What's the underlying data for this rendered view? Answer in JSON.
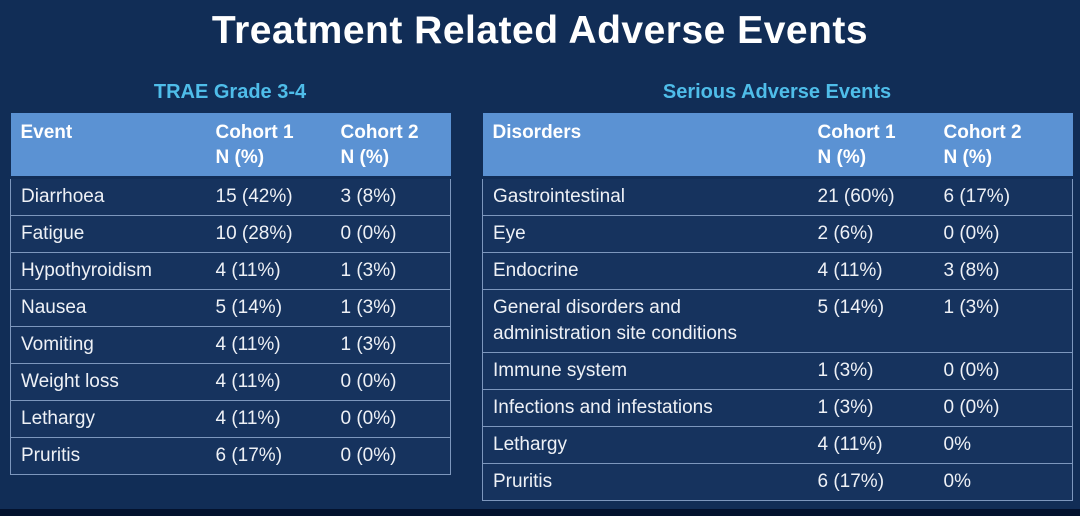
{
  "slide": {
    "title": "Treatment Related Adverse Events"
  },
  "colors": {
    "background": "#112d56",
    "table_header_blue": "#5b92d3",
    "subtitle_blue": "#4fbde9",
    "row_background": "#16335e",
    "row_border": "#7d97bd",
    "title_text": "#ffffff"
  },
  "tables": [
    {
      "subtitle": "TRAE Grade 3-4",
      "columns": [
        {
          "title": "Event",
          "sub": ""
        },
        {
          "title": "Cohort 1",
          "sub": "N (%)"
        },
        {
          "title": "Cohort 2",
          "sub": "N (%)"
        }
      ],
      "rows": [
        {
          "label": "Diarrhoea",
          "c1": "15 (42%)",
          "c2": "3 (8%)"
        },
        {
          "label": "Fatigue",
          "c1": "10 (28%)",
          "c2": "0 (0%)"
        },
        {
          "label": "Hypothyroidism",
          "c1": "4 (11%)",
          "c2": "1 (3%)"
        },
        {
          "label": "Nausea",
          "c1": "5 (14%)",
          "c2": "1 (3%)"
        },
        {
          "label": "Vomiting",
          "c1": "4 (11%)",
          "c2": "1 (3%)"
        },
        {
          "label": "Weight loss",
          "c1": "4 (11%)",
          "c2": "0 (0%)"
        },
        {
          "label": "Lethargy",
          "c1": "4 (11%)",
          "c2": "0 (0%)"
        },
        {
          "label": "Pruritis",
          "c1": "6 (17%)",
          "c2": "0 (0%)"
        }
      ]
    },
    {
      "subtitle": "Serious Adverse Events",
      "columns": [
        {
          "title": "Disorders",
          "sub": ""
        },
        {
          "title": "Cohort 1",
          "sub": "N (%)"
        },
        {
          "title": "Cohort 2",
          "sub": "N (%)"
        }
      ],
      "rows": [
        {
          "label": "Gastrointestinal",
          "c1": "21 (60%)",
          "c2": "6 (17%)"
        },
        {
          "label": "Eye",
          "c1": "2 (6%)",
          "c2": "0 (0%)"
        },
        {
          "label": "Endocrine",
          "c1": "4 (11%)",
          "c2": "3 (8%)"
        },
        {
          "label": "General disorders and administration site conditions",
          "c1": "5 (14%)",
          "c2": "1 (3%)"
        },
        {
          "label": "Immune system",
          "c1": "1 (3%)",
          "c2": "0 (0%)"
        },
        {
          "label": "Infections and infestations",
          "c1": "1 (3%)",
          "c2": "0 (0%)"
        },
        {
          "label": "Lethargy",
          "c1": "4 (11%)",
          "c2": "0%"
        },
        {
          "label": "Pruritis",
          "c1": "6 (17%)",
          "c2": "0%"
        }
      ]
    }
  ]
}
